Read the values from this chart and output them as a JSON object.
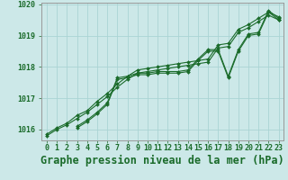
{
  "title": "Graphe pression niveau de la mer (hPa)",
  "xlabel_hours": [
    0,
    1,
    2,
    3,
    4,
    5,
    6,
    7,
    8,
    9,
    10,
    11,
    12,
    13,
    14,
    15,
    16,
    17,
    18,
    19,
    20,
    21,
    22,
    23
  ],
  "ylim": [
    1015.65,
    1020.05
  ],
  "yticks": [
    1016,
    1017,
    1018,
    1019,
    1020
  ],
  "background_color": "#cce8e8",
  "grid_color": "#aad4d4",
  "line_color": "#1a6b2a",
  "series": {
    "line1": [
      1015.8,
      1016.0,
      1016.15,
      1016.35,
      1016.55,
      1016.8,
      1017.05,
      1017.35,
      1017.6,
      1017.8,
      1017.85,
      1017.9,
      1017.95,
      1018.0,
      1018.05,
      1018.1,
      1018.15,
      1018.6,
      1018.65,
      1019.1,
      1019.25,
      1019.45,
      1019.65,
      1019.5
    ],
    "line2": [
      1015.85,
      1016.05,
      1016.2,
      1016.45,
      1016.6,
      1016.9,
      1017.15,
      1017.45,
      1017.7,
      1017.9,
      1017.95,
      1018.0,
      1018.05,
      1018.1,
      1018.15,
      1018.2,
      1018.25,
      1018.7,
      1018.75,
      1019.2,
      1019.35,
      1019.55,
      1019.75,
      1019.6
    ],
    "line3": [
      null,
      null,
      null,
      1016.1,
      1016.3,
      1016.55,
      1016.85,
      1017.65,
      1017.7,
      1017.8,
      1017.8,
      1017.85,
      1017.85,
      1017.85,
      1017.9,
      1018.25,
      1018.55,
      1018.55,
      1017.7,
      1018.55,
      1019.05,
      1019.1,
      1019.8,
      1019.55
    ],
    "line4": [
      null,
      null,
      null,
      1016.05,
      1016.25,
      1016.5,
      1016.8,
      1017.6,
      1017.65,
      1017.75,
      1017.75,
      1017.8,
      1017.8,
      1017.8,
      1017.85,
      1018.2,
      1018.5,
      1018.5,
      1017.65,
      1018.5,
      1019.0,
      1019.05,
      1019.75,
      1019.5
    ]
  },
  "marker": "D",
  "marker_size": 2.0,
  "linewidth": 0.8,
  "title_fontsize": 8.5,
  "tick_fontsize": 6.0
}
